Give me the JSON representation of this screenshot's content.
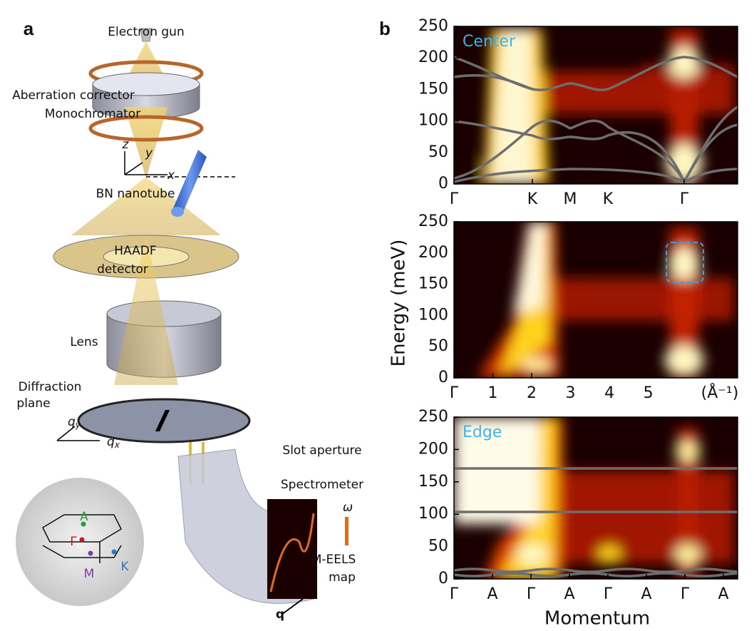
{
  "figure": {
    "panel_a": {
      "label": "a",
      "electron_gun": "Electron gun",
      "corrector": "Aberration corrector",
      "monochromator": "Monochromator",
      "axis_z": "z",
      "axis_y": "y",
      "axis_x": "x",
      "nanotube": "BN nanotube",
      "haadf": "HAADF",
      "detector": "detector",
      "lens": "Lens",
      "diffraction": "Diffraction",
      "plane": "plane",
      "qy": {
        "symbol": "q",
        "sub": "y"
      },
      "qx": {
        "symbol": "q",
        "sub": "x"
      },
      "slot": "Slot aperture",
      "spectrometer": "Spectrometer",
      "omega": "ω",
      "meels": "M-EELS",
      "map": "map",
      "q": "q",
      "bz": {
        "A": "A",
        "Gamma": "Γ",
        "M": "M",
        "K": "K"
      }
    },
    "panel_b": {
      "label": "b",
      "y_label": "Energy (meV)",
      "x_label": "Momentum"
    }
  },
  "chart_data": [
    {
      "type": "heatmap",
      "annotation": "Center",
      "ylim": [
        0,
        250
      ],
      "yticks": [
        0,
        50,
        100,
        150,
        200,
        250
      ],
      "categories": [
        "Γ",
        "K",
        "M",
        "K",
        "Γ"
      ]
    },
    {
      "type": "heatmap",
      "ylim": [
        0,
        250
      ],
      "yticks": [
        0,
        50,
        100,
        150,
        200,
        250
      ],
      "xlim": [
        0,
        7.3
      ],
      "xticks": [
        {
          "value": 0,
          "label": "Γ"
        },
        1,
        2,
        3,
        4,
        5
      ],
      "x_unit": "(Å⁻¹)"
    },
    {
      "type": "heatmap",
      "annotation": "Edge",
      "ylim": [
        0,
        250
      ],
      "yticks": [
        0,
        50,
        100,
        150,
        200,
        250
      ],
      "categories": [
        "Γ",
        "A",
        "Γ",
        "A",
        "Γ",
        "A",
        "Γ",
        "A"
      ]
    }
  ]
}
